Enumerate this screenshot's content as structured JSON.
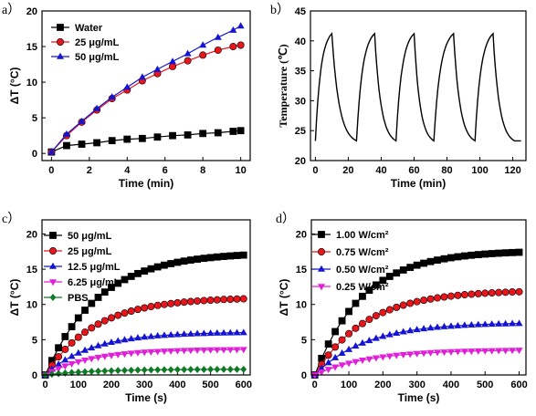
{
  "chart_data": [
    {
      "panel": "a）",
      "type": "line",
      "xlabel": "Time (min)",
      "ylabel": "ΔT (°C)",
      "xlim": [
        -0.5,
        10.5
      ],
      "ylim": [
        -1,
        20
      ],
      "xticks": [
        0,
        2,
        4,
        6,
        8,
        10
      ],
      "yticks": [
        0,
        5,
        10,
        15,
        20
      ],
      "legend_position": "top-left",
      "series": [
        {
          "name": "Water",
          "marker": "square",
          "color": "#000000",
          "x": [
            0,
            0.8,
            1.6,
            2.4,
            3.2,
            4.0,
            4.8,
            5.6,
            6.4,
            7.2,
            8.0,
            8.8,
            9.6,
            10
          ],
          "y": [
            0.2,
            1.1,
            1.3,
            1.5,
            1.8,
            2.0,
            2.1,
            2.3,
            2.5,
            2.6,
            2.8,
            2.9,
            3.1,
            3.2
          ]
        },
        {
          "name": "25 μg/mL",
          "marker": "circle",
          "color": "#e8161b",
          "x": [
            0,
            0.8,
            1.6,
            2.4,
            3.2,
            4.0,
            4.8,
            5.6,
            6.4,
            7.2,
            8.0,
            8.8,
            9.6,
            10
          ],
          "y": [
            0.2,
            2.5,
            4.4,
            6.1,
            7.7,
            8.9,
            10.2,
            11.2,
            12.2,
            13.0,
            13.8,
            14.5,
            15.0,
            15.2
          ]
        },
        {
          "name": "50 μg/mL",
          "marker": "triangle",
          "color": "#1414d2",
          "x": [
            0,
            0.8,
            1.6,
            2.4,
            3.2,
            4.0,
            4.8,
            5.6,
            6.4,
            7.2,
            8.0,
            8.8,
            9.6,
            10
          ],
          "y": [
            0.2,
            2.7,
            4.5,
            6.3,
            7.9,
            9.3,
            10.7,
            11.8,
            12.9,
            14.0,
            15.2,
            16.3,
            17.3,
            17.9
          ]
        }
      ]
    },
    {
      "panel": "b）",
      "type": "line",
      "xlabel": "Time (min)",
      "ylabel": "Temperature (℃)",
      "xlim": [
        -3,
        128
      ],
      "ylim": [
        20,
        45
      ],
      "xticks": [
        0,
        20,
        40,
        60,
        80,
        100,
        120
      ],
      "yticks": [
        20,
        25,
        30,
        35,
        40,
        45
      ],
      "series": [
        {
          "name": "",
          "marker": "none",
          "color": "#000000",
          "cycles": [
            {
              "start": 0,
              "peak_time": 10,
              "end": 25
            },
            {
              "start": 25,
              "peak_time": 36,
              "end": 49
            },
            {
              "start": 49,
              "peak_time": 60,
              "end": 72
            },
            {
              "start": 72,
              "peak_time": 84,
              "end": 97
            },
            {
              "start": 97,
              "peak_time": 108,
              "end": 121
            }
          ],
          "min_temp": 23.3,
          "peak_temp": 41.2,
          "final_time": 125
        }
      ]
    },
    {
      "panel": "c）",
      "type": "line",
      "xlabel": "Time (s)",
      "ylabel": "ΔT (°C)",
      "xlim": [
        -10,
        620
      ],
      "ylim": [
        0,
        22
      ],
      "xticks": [
        0,
        100,
        200,
        300,
        400,
        500,
        600
      ],
      "yticks": [
        0,
        5,
        10,
        15,
        20
      ],
      "legend_position": "top-left",
      "series": [
        {
          "name": "50 μg/mL",
          "marker": "square",
          "color": "#000000",
          "plateau": 17.0,
          "tau": 160
        },
        {
          "name": "25 μg/mL",
          "marker": "circle",
          "color": "#e8161b",
          "plateau": 10.8,
          "tau": 150
        },
        {
          "name": "12.5 μg/mL",
          "marker": "triangle",
          "color": "#1414d2",
          "plateau": 6.0,
          "tau": 140
        },
        {
          "name": "6.25 μg/mL",
          "marker": "triangle-down",
          "color": "#e01fd8",
          "plateau": 3.6,
          "tau": 140
        },
        {
          "name": "PBS",
          "marker": "diamond",
          "color": "#0f7a26",
          "plateau": 0.8,
          "tau": 150
        }
      ]
    },
    {
      "panel": "d）",
      "type": "line",
      "xlabel": "Time (s)",
      "ylabel": "ΔT (°C)",
      "xlim": [
        -10,
        620
      ],
      "ylim": [
        0,
        22
      ],
      "xticks": [
        0,
        100,
        200,
        300,
        400,
        500,
        600
      ],
      "yticks": [
        0,
        5,
        10,
        15,
        20
      ],
      "legend_position": "top-left",
      "series": [
        {
          "name": "1.00 W/cm²",
          "marker": "square",
          "color": "#000000",
          "plateau": 17.4,
          "tau": 140
        },
        {
          "name": "0.75 W/cm²",
          "marker": "circle",
          "color": "#e8161b",
          "plateau": 11.8,
          "tau": 150
        },
        {
          "name": "0.50 W/cm²",
          "marker": "triangle",
          "color": "#1414d2",
          "plateau": 7.3,
          "tau": 150
        },
        {
          "name": "0.25 W/cm²",
          "marker": "triangle-down",
          "color": "#e01fd8",
          "plateau": 3.5,
          "tau": 160
        }
      ]
    }
  ]
}
